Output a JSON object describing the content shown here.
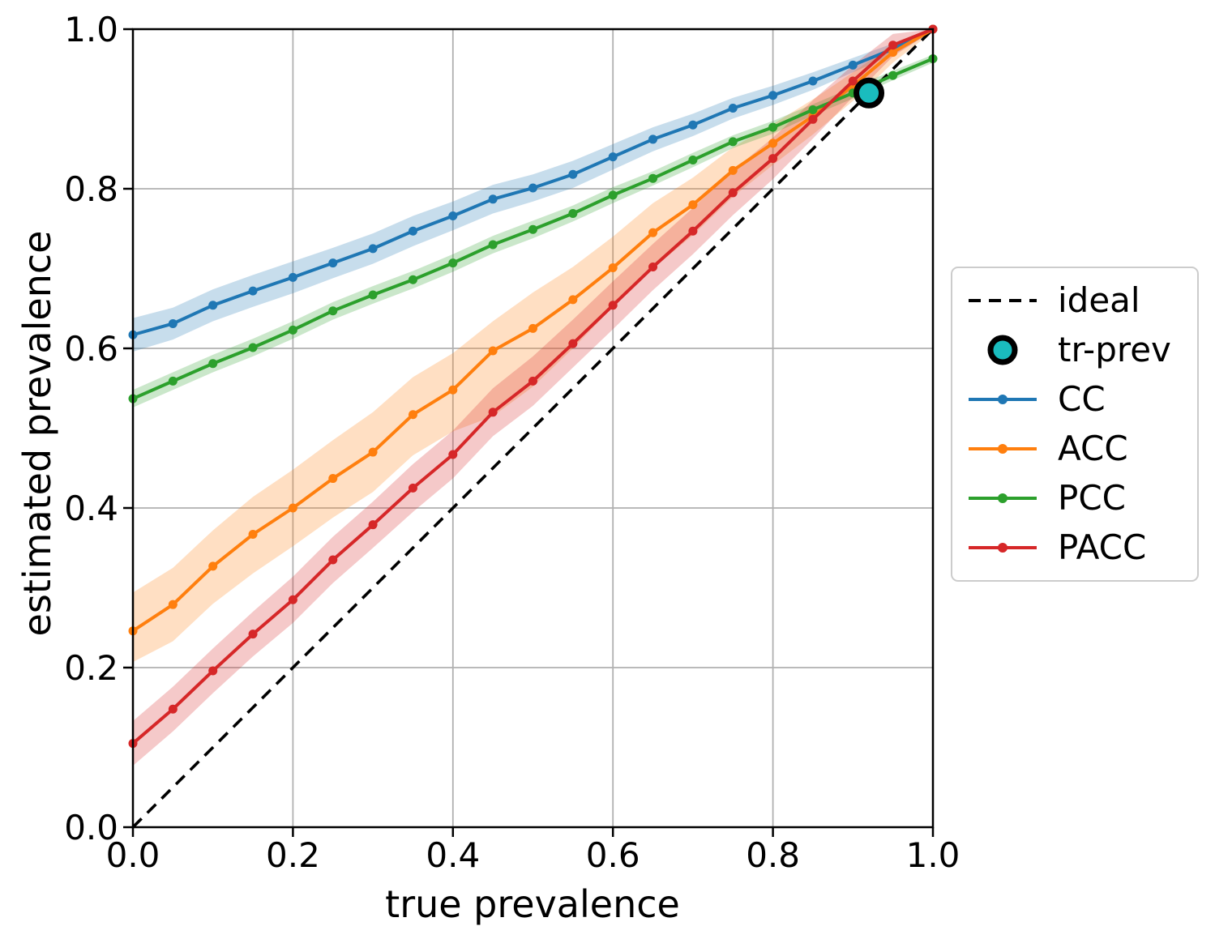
{
  "figure": {
    "x_ticks": [
      "0.0",
      "0.2",
      "0.4",
      "0.6",
      "0.8",
      "1.0"
    ],
    "y_ticks": [
      "0.0",
      "0.2",
      "0.4",
      "0.6",
      "0.8",
      "1.0"
    ],
    "colors": {
      "grid": "#b0b0b0",
      "frame": "#000000",
      "tick": "#000000",
      "background": "#ffffff",
      "legend_border": "#cccccc"
    }
  },
  "chart_data": {
    "type": "line",
    "title": "",
    "xlabel": "true prevalence",
    "ylabel": "estimated prevalence",
    "xlim": [
      0.0,
      1.0
    ],
    "ylim": [
      0.0,
      1.0
    ],
    "grid": true,
    "legend_position": "outside right",
    "x": [
      0.0,
      0.05,
      0.1,
      0.15,
      0.2,
      0.25,
      0.3,
      0.35,
      0.4,
      0.45,
      0.5,
      0.55,
      0.6,
      0.65,
      0.7,
      0.75,
      0.8,
      0.85,
      0.9,
      0.95,
      1.0
    ],
    "ideal": {
      "label": "ideal",
      "style": "dashed",
      "color": "#000000",
      "from": [
        0.0,
        0.0
      ],
      "to": [
        1.0,
        1.0
      ]
    },
    "tr_prev": {
      "label": "tr-prev",
      "x": 0.92,
      "y": 0.92,
      "color": "#1abcbe",
      "edge": "#000000"
    },
    "series": [
      {
        "name": "CC",
        "color": "#1f77b4",
        "values": [
          0.617,
          0.631,
          0.654,
          0.672,
          0.689,
          0.707,
          0.725,
          0.747,
          0.766,
          0.787,
          0.801,
          0.818,
          0.84,
          0.862,
          0.88,
          0.901,
          0.917,
          0.935,
          0.955,
          0.975,
          1.0
        ],
        "band_lo": [
          0.596,
          0.611,
          0.634,
          0.652,
          0.669,
          0.688,
          0.706,
          0.728,
          0.748,
          0.769,
          0.784,
          0.801,
          0.824,
          0.847,
          0.866,
          0.888,
          0.905,
          0.924,
          0.946,
          0.968,
          0.997
        ],
        "band_hi": [
          0.638,
          0.651,
          0.674,
          0.692,
          0.709,
          0.726,
          0.744,
          0.766,
          0.784,
          0.805,
          0.818,
          0.835,
          0.856,
          0.877,
          0.894,
          0.914,
          0.929,
          0.946,
          0.964,
          0.982,
          1.0
        ]
      },
      {
        "name": "ACC",
        "color": "#ff7f0e",
        "values": [
          0.246,
          0.279,
          0.327,
          0.367,
          0.4,
          0.437,
          0.47,
          0.517,
          0.548,
          0.597,
          0.625,
          0.661,
          0.701,
          0.745,
          0.78,
          0.823,
          0.857,
          0.891,
          0.929,
          0.971,
          1.0
        ],
        "band_lo": [
          0.207,
          0.233,
          0.28,
          0.318,
          0.352,
          0.388,
          0.42,
          0.466,
          0.496,
          0.515,
          0.552,
          0.6,
          0.652,
          0.7,
          0.742,
          0.79,
          0.83,
          0.868,
          0.91,
          0.958,
          0.997
        ],
        "band_hi": [
          0.294,
          0.325,
          0.372,
          0.414,
          0.448,
          0.485,
          0.52,
          0.564,
          0.594,
          0.634,
          0.67,
          0.702,
          0.74,
          0.782,
          0.814,
          0.852,
          0.881,
          0.912,
          0.946,
          0.982,
          1.0
        ]
      },
      {
        "name": "PCC",
        "color": "#2ca02c",
        "values": [
          0.537,
          0.559,
          0.581,
          0.601,
          0.623,
          0.647,
          0.667,
          0.686,
          0.707,
          0.73,
          0.749,
          0.769,
          0.792,
          0.813,
          0.836,
          0.859,
          0.877,
          0.899,
          0.92,
          0.942,
          0.963
        ],
        "band_lo": [
          0.526,
          0.548,
          0.57,
          0.59,
          0.612,
          0.636,
          0.656,
          0.675,
          0.696,
          0.719,
          0.738,
          0.759,
          0.782,
          0.804,
          0.827,
          0.851,
          0.869,
          0.892,
          0.913,
          0.936,
          0.958
        ],
        "band_hi": [
          0.548,
          0.57,
          0.592,
          0.612,
          0.634,
          0.658,
          0.678,
          0.697,
          0.718,
          0.741,
          0.76,
          0.779,
          0.802,
          0.822,
          0.845,
          0.867,
          0.885,
          0.906,
          0.927,
          0.948,
          0.968
        ]
      },
      {
        "name": "PACC",
        "color": "#d62728",
        "values": [
          0.105,
          0.148,
          0.196,
          0.242,
          0.285,
          0.335,
          0.379,
          0.425,
          0.467,
          0.52,
          0.559,
          0.606,
          0.654,
          0.702,
          0.747,
          0.795,
          0.838,
          0.887,
          0.935,
          0.98,
          1.0
        ],
        "band_lo": [
          0.077,
          0.12,
          0.168,
          0.214,
          0.256,
          0.306,
          0.35,
          0.395,
          0.437,
          0.49,
          0.528,
          0.576,
          0.624,
          0.673,
          0.718,
          0.767,
          0.812,
          0.863,
          0.915,
          0.966,
          0.998
        ],
        "band_hi": [
          0.133,
          0.176,
          0.224,
          0.27,
          0.314,
          0.364,
          0.408,
          0.455,
          0.497,
          0.55,
          0.59,
          0.636,
          0.684,
          0.731,
          0.776,
          0.823,
          0.864,
          0.911,
          0.955,
          0.994,
          1.0
        ]
      }
    ]
  },
  "legend": {
    "items": [
      {
        "label": "ideal",
        "glyph": "dashed",
        "color": "#000000"
      },
      {
        "label": "tr-prev",
        "glyph": "circle",
        "color": "#1abcbe",
        "edge": "#000000"
      },
      {
        "label": "CC",
        "glyph": "line",
        "color": "#1f77b4"
      },
      {
        "label": "ACC",
        "glyph": "line",
        "color": "#ff7f0e"
      },
      {
        "label": "PCC",
        "glyph": "line",
        "color": "#2ca02c"
      },
      {
        "label": "PACC",
        "glyph": "line",
        "color": "#d62728"
      }
    ]
  }
}
